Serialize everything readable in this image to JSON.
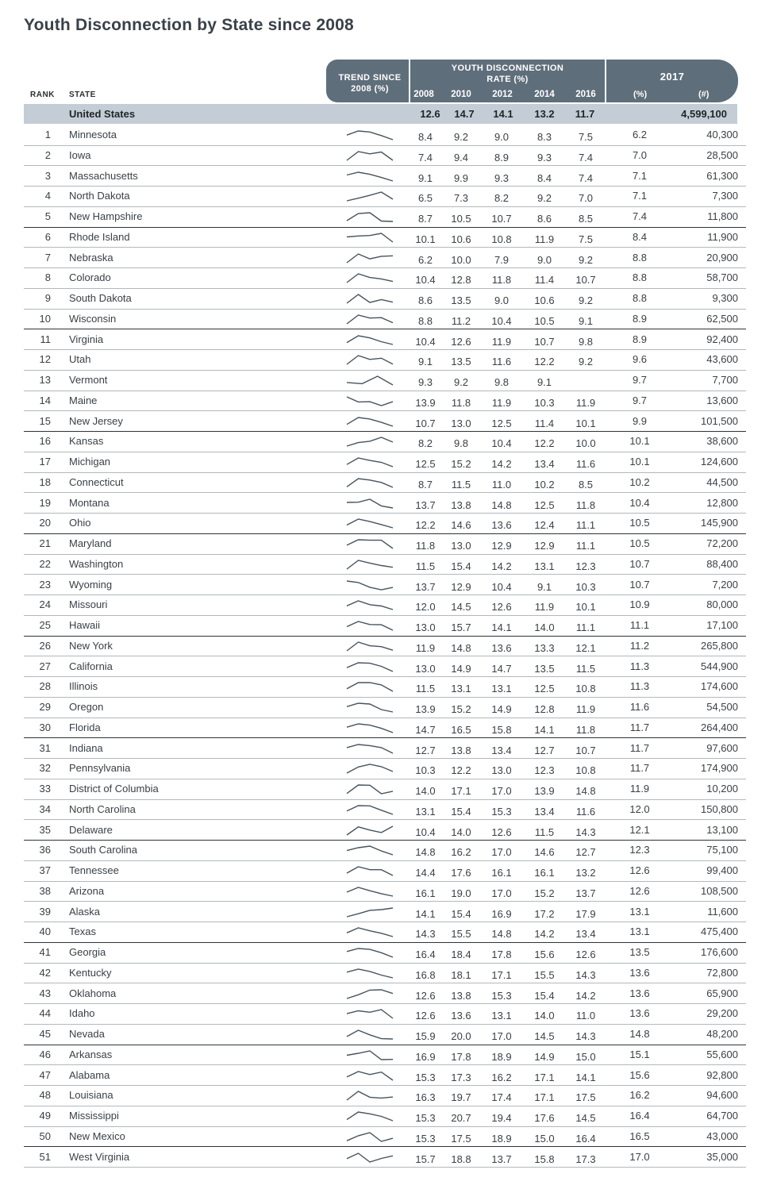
{
  "title": "Youth Disconnection by State since 2008",
  "header": {
    "rank": "RANK",
    "state": "STATE",
    "trend_line1": "TREND SINCE",
    "trend_line2": "2008 (%)",
    "rate_line1": "YOUTH DISCONNECTION",
    "rate_line2": "RATE (%)",
    "years": [
      "2008",
      "2010",
      "2012",
      "2014",
      "2016"
    ],
    "col2017": "2017",
    "unit_pct": "(%)",
    "unit_num": "(#)"
  },
  "us": {
    "state": "United States",
    "rates": [
      "12.6",
      "14.7",
      "14.1",
      "13.2",
      "11.7"
    ],
    "num": "4,599,100"
  },
  "rows": [
    {
      "rank": "1",
      "state": "Minnesota",
      "rates": [
        "8.4",
        "9.2",
        "9.0",
        "8.3",
        "7.5"
      ],
      "pct": "6.2",
      "num": "40,300"
    },
    {
      "rank": "2",
      "state": "Iowa",
      "rates": [
        "7.4",
        "9.4",
        "8.9",
        "9.3",
        "7.4"
      ],
      "pct": "7.0",
      "num": "28,500"
    },
    {
      "rank": "3",
      "state": "Massachusetts",
      "rates": [
        "9.1",
        "9.9",
        "9.3",
        "8.4",
        "7.4"
      ],
      "pct": "7.1",
      "num": "61,300"
    },
    {
      "rank": "4",
      "state": "North Dakota",
      "rates": [
        "6.5",
        "7.3",
        "8.2",
        "9.2",
        "7.0"
      ],
      "pct": "7.1",
      "num": "7,300"
    },
    {
      "rank": "5",
      "state": "New Hampshire",
      "rates": [
        "8.7",
        "10.5",
        "10.7",
        "8.6",
        "8.5"
      ],
      "pct": "7.4",
      "num": "11,800"
    },
    {
      "rank": "6",
      "state": "Rhode Island",
      "rates": [
        "10.1",
        "10.6",
        "10.8",
        "11.9",
        "7.5"
      ],
      "pct": "8.4",
      "num": "11,900"
    },
    {
      "rank": "7",
      "state": "Nebraska",
      "rates": [
        "6.2",
        "10.0",
        "7.9",
        "9.0",
        "9.2"
      ],
      "pct": "8.8",
      "num": "20,900"
    },
    {
      "rank": "8",
      "state": "Colorado",
      "rates": [
        "10.4",
        "12.8",
        "11.8",
        "11.4",
        "10.7"
      ],
      "pct": "8.8",
      "num": "58,700"
    },
    {
      "rank": "9",
      "state": "South Dakota",
      "rates": [
        "8.6",
        "13.5",
        "9.0",
        "10.6",
        "9.2"
      ],
      "pct": "8.8",
      "num": "9,300"
    },
    {
      "rank": "10",
      "state": "Wisconsin",
      "rates": [
        "8.8",
        "11.2",
        "10.4",
        "10.5",
        "9.1"
      ],
      "pct": "8.9",
      "num": "62,500"
    },
    {
      "rank": "11",
      "state": "Virginia",
      "rates": [
        "10.4",
        "12.6",
        "11.9",
        "10.7",
        "9.8"
      ],
      "pct": "8.9",
      "num": "92,400"
    },
    {
      "rank": "12",
      "state": "Utah",
      "rates": [
        "9.1",
        "13.5",
        "11.6",
        "12.2",
        "9.2"
      ],
      "pct": "9.6",
      "num": "43,600"
    },
    {
      "rank": "13",
      "state": "Vermont",
      "rates": [
        "9.3",
        "9.2",
        "9.8",
        "9.1",
        ""
      ],
      "pct": "9.7",
      "num": "7,700"
    },
    {
      "rank": "14",
      "state": "Maine",
      "rates": [
        "13.9",
        "11.8",
        "11.9",
        "10.3",
        "11.9"
      ],
      "pct": "9.7",
      "num": "13,600"
    },
    {
      "rank": "15",
      "state": "New Jersey",
      "rates": [
        "10.7",
        "13.0",
        "12.5",
        "11.4",
        "10.1"
      ],
      "pct": "9.9",
      "num": "101,500"
    },
    {
      "rank": "16",
      "state": "Kansas",
      "rates": [
        "8.2",
        "9.8",
        "10.4",
        "12.2",
        "10.0"
      ],
      "pct": "10.1",
      "num": "38,600"
    },
    {
      "rank": "17",
      "state": "Michigan",
      "rates": [
        "12.5",
        "15.2",
        "14.2",
        "13.4",
        "11.6"
      ],
      "pct": "10.1",
      "num": "124,600"
    },
    {
      "rank": "18",
      "state": "Connecticut",
      "rates": [
        "8.7",
        "11.5",
        "11.0",
        "10.2",
        "8.5"
      ],
      "pct": "10.2",
      "num": "44,500"
    },
    {
      "rank": "19",
      "state": "Montana",
      "rates": [
        "13.7",
        "13.8",
        "14.8",
        "12.5",
        "11.8"
      ],
      "pct": "10.4",
      "num": "12,800"
    },
    {
      "rank": "20",
      "state": "Ohio",
      "rates": [
        "12.2",
        "14.6",
        "13.6",
        "12.4",
        "11.1"
      ],
      "pct": "10.5",
      "num": "145,900"
    },
    {
      "rank": "21",
      "state": "Maryland",
      "rates": [
        "11.8",
        "13.0",
        "12.9",
        "12.9",
        "11.1"
      ],
      "pct": "10.5",
      "num": "72,200"
    },
    {
      "rank": "22",
      "state": "Washington",
      "rates": [
        "11.5",
        "15.4",
        "14.2",
        "13.1",
        "12.3"
      ],
      "pct": "10.7",
      "num": "88,400"
    },
    {
      "rank": "23",
      "state": "Wyoming",
      "rates": [
        "13.7",
        "12.9",
        "10.4",
        "9.1",
        "10.3"
      ],
      "pct": "10.7",
      "num": "7,200"
    },
    {
      "rank": "24",
      "state": "Missouri",
      "rates": [
        "12.0",
        "14.5",
        "12.6",
        "11.9",
        "10.1"
      ],
      "pct": "10.9",
      "num": "80,000"
    },
    {
      "rank": "25",
      "state": "Hawaii",
      "rates": [
        "13.0",
        "15.7",
        "14.1",
        "14.0",
        "11.1"
      ],
      "pct": "11.1",
      "num": "17,100"
    },
    {
      "rank": "26",
      "state": "New York",
      "rates": [
        "11.9",
        "14.8",
        "13.6",
        "13.3",
        "12.1"
      ],
      "pct": "11.2",
      "num": "265,800"
    },
    {
      "rank": "27",
      "state": "California",
      "rates": [
        "13.0",
        "14.9",
        "14.7",
        "13.5",
        "11.5"
      ],
      "pct": "11.3",
      "num": "544,900"
    },
    {
      "rank": "28",
      "state": "Illinois",
      "rates": [
        "11.5",
        "13.1",
        "13.1",
        "12.5",
        "10.8"
      ],
      "pct": "11.3",
      "num": "174,600"
    },
    {
      "rank": "29",
      "state": "Oregon",
      "rates": [
        "13.9",
        "15.2",
        "14.9",
        "12.8",
        "11.9"
      ],
      "pct": "11.6",
      "num": "54,500"
    },
    {
      "rank": "30",
      "state": "Florida",
      "rates": [
        "14.7",
        "16.5",
        "15.8",
        "14.1",
        "11.8"
      ],
      "pct": "11.7",
      "num": "264,400"
    },
    {
      "rank": "31",
      "state": "Indiana",
      "rates": [
        "12.7",
        "13.8",
        "13.4",
        "12.7",
        "10.7"
      ],
      "pct": "11.7",
      "num": "97,600"
    },
    {
      "rank": "32",
      "state": "Pennsylvania",
      "rates": [
        "10.3",
        "12.2",
        "13.0",
        "12.3",
        "10.8"
      ],
      "pct": "11.7",
      "num": "174,900"
    },
    {
      "rank": "33",
      "state": "District of Columbia",
      "rates": [
        "14.0",
        "17.1",
        "17.0",
        "13.9",
        "14.8"
      ],
      "pct": "11.9",
      "num": "10,200"
    },
    {
      "rank": "34",
      "state": "North Carolina",
      "rates": [
        "13.1",
        "15.4",
        "15.3",
        "13.4",
        "11.6"
      ],
      "pct": "12.0",
      "num": "150,800"
    },
    {
      "rank": "35",
      "state": "Delaware",
      "rates": [
        "10.4",
        "14.0",
        "12.6",
        "11.5",
        "14.3"
      ],
      "pct": "12.1",
      "num": "13,100"
    },
    {
      "rank": "36",
      "state": "South Carolina",
      "rates": [
        "14.8",
        "16.2",
        "17.0",
        "14.6",
        "12.7"
      ],
      "pct": "12.3",
      "num": "75,100"
    },
    {
      "rank": "37",
      "state": "Tennessee",
      "rates": [
        "14.4",
        "17.6",
        "16.1",
        "16.1",
        "13.2"
      ],
      "pct": "12.6",
      "num": "99,400"
    },
    {
      "rank": "38",
      "state": "Arizona",
      "rates": [
        "16.1",
        "19.0",
        "17.0",
        "15.2",
        "13.7"
      ],
      "pct": "12.6",
      "num": "108,500"
    },
    {
      "rank": "39",
      "state": "Alaska",
      "rates": [
        "14.1",
        "15.4",
        "16.9",
        "17.2",
        "17.9"
      ],
      "pct": "13.1",
      "num": "11,600"
    },
    {
      "rank": "40",
      "state": "Texas",
      "rates": [
        "14.3",
        "15.5",
        "14.8",
        "14.2",
        "13.4"
      ],
      "pct": "13.1",
      "num": "475,400"
    },
    {
      "rank": "41",
      "state": "Georgia",
      "rates": [
        "16.4",
        "18.4",
        "17.8",
        "15.6",
        "12.6"
      ],
      "pct": "13.5",
      "num": "176,600"
    },
    {
      "rank": "42",
      "state": "Kentucky",
      "rates": [
        "16.8",
        "18.1",
        "17.1",
        "15.5",
        "14.3"
      ],
      "pct": "13.6",
      "num": "72,800"
    },
    {
      "rank": "43",
      "state": "Oklahoma",
      "rates": [
        "12.6",
        "13.8",
        "15.3",
        "15.4",
        "14.2"
      ],
      "pct": "13.6",
      "num": "65,900"
    },
    {
      "rank": "44",
      "state": "Idaho",
      "rates": [
        "12.6",
        "13.6",
        "13.1",
        "14.0",
        "11.0"
      ],
      "pct": "13.6",
      "num": "29,200"
    },
    {
      "rank": "45",
      "state": "Nevada",
      "rates": [
        "15.9",
        "20.0",
        "17.0",
        "14.5",
        "14.3"
      ],
      "pct": "14.8",
      "num": "48,200"
    },
    {
      "rank": "46",
      "state": "Arkansas",
      "rates": [
        "16.9",
        "17.8",
        "18.9",
        "14.9",
        "15.0"
      ],
      "pct": "15.1",
      "num": "55,600"
    },
    {
      "rank": "47",
      "state": "Alabama",
      "rates": [
        "15.3",
        "17.3",
        "16.2",
        "17.1",
        "14.1"
      ],
      "pct": "15.6",
      "num": "92,800"
    },
    {
      "rank": "48",
      "state": "Louisiana",
      "rates": [
        "16.3",
        "19.7",
        "17.4",
        "17.1",
        "17.5"
      ],
      "pct": "16.2",
      "num": "94,600"
    },
    {
      "rank": "49",
      "state": "Mississippi",
      "rates": [
        "15.3",
        "20.7",
        "19.4",
        "17.6",
        "14.5"
      ],
      "pct": "16.4",
      "num": "64,700"
    },
    {
      "rank": "50",
      "state": "New Mexico",
      "rates": [
        "15.3",
        "17.5",
        "18.9",
        "15.0",
        "16.4"
      ],
      "pct": "16.5",
      "num": "43,000"
    },
    {
      "rank": "51",
      "state": "West Virginia",
      "rates": [
        "15.7",
        "18.8",
        "13.7",
        "15.8",
        "17.3"
      ],
      "pct": "17.0",
      "num": "35,000"
    }
  ]
}
